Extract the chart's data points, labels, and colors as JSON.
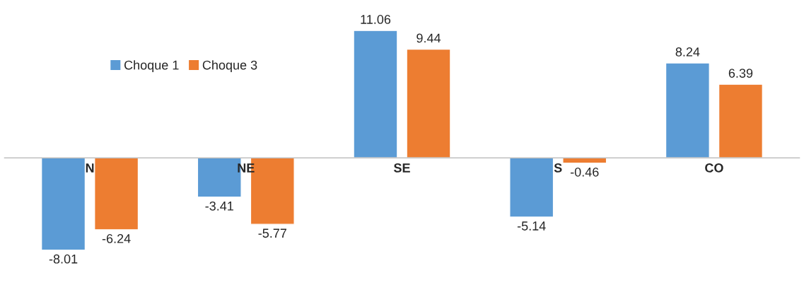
{
  "chart_data": {
    "type": "bar",
    "categories": [
      "N",
      "NE",
      "SE",
      "S",
      "CO"
    ],
    "series": [
      {
        "name": "Choque 1",
        "color": "#5b9bd5",
        "values": [
          -8.01,
          -3.41,
          11.06,
          -5.14,
          8.24
        ]
      },
      {
        "name": "Choque 3",
        "color": "#ed7d31",
        "values": [
          -6.24,
          -5.77,
          9.44,
          -0.46,
          6.39
        ]
      }
    ],
    "data_labels": true,
    "legend": "top left"
  }
}
